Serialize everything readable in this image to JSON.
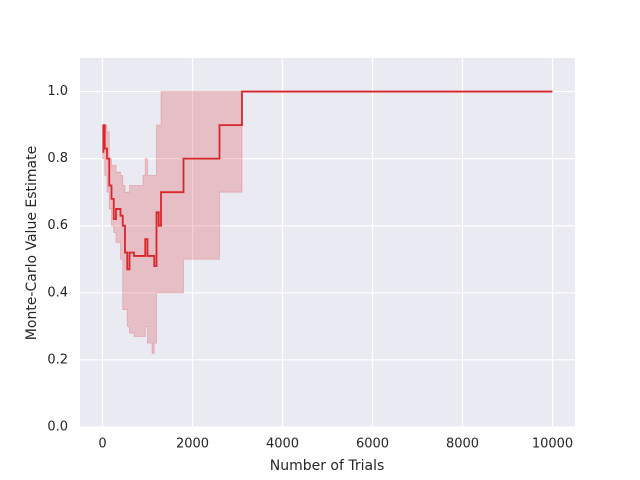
{
  "chart_data": {
    "type": "line",
    "x_label": "Number of Trials",
    "y_label": "Monte-Carlo Value Estimate",
    "x": [
      0,
      20,
      50,
      100,
      150,
      200,
      250,
      300,
      400,
      450,
      500,
      550,
      600,
      700,
      900,
      950,
      1000,
      1100,
      1150,
      1200,
      1250,
      1300,
      1800,
      2600,
      3100,
      10000
    ],
    "series": [
      {
        "color": "#d9262b",
        "values": [
          0.82,
          0.9,
          0.83,
          0.8,
          0.72,
          0.68,
          0.62,
          0.65,
          0.63,
          0.6,
          0.52,
          0.47,
          0.52,
          0.51,
          0.51,
          0.56,
          0.51,
          0.51,
          0.48,
          0.64,
          0.6,
          0.7,
          0.8,
          0.9,
          1.0,
          1.0
        ],
        "lower": [
          0.8,
          0.8,
          0.75,
          0.7,
          0.65,
          0.6,
          0.58,
          0.55,
          0.5,
          0.35,
          0.35,
          0.3,
          0.28,
          0.27,
          0.27,
          0.3,
          0.25,
          0.22,
          0.25,
          0.4,
          0.4,
          0.4,
          0.5,
          0.7,
          1.0,
          1.0
        ],
        "upper": [
          0.9,
          0.9,
          0.9,
          0.88,
          0.8,
          0.78,
          0.78,
          0.76,
          0.75,
          0.72,
          0.7,
          0.7,
          0.72,
          0.72,
          0.75,
          0.8,
          0.75,
          0.75,
          0.75,
          0.9,
          0.9,
          1.0,
          1.0,
          1.0,
          1.0,
          1.0
        ]
      }
    ],
    "xlim": [
      -500,
      10500
    ],
    "ylim": [
      0,
      1.1
    ],
    "xticks": [
      0,
      2000,
      4000,
      6000,
      8000,
      10000
    ],
    "yticks": [
      {
        "value": 0,
        "label": "0.0"
      },
      {
        "value": 0.2,
        "label": "0.2"
      },
      {
        "value": 0.4,
        "label": "0.4"
      },
      {
        "value": 0.6,
        "label": "0.6"
      },
      {
        "value": 0.8,
        "label": "0.8"
      },
      {
        "value": 1.0,
        "label": "1.0"
      }
    ],
    "grid": true
  }
}
